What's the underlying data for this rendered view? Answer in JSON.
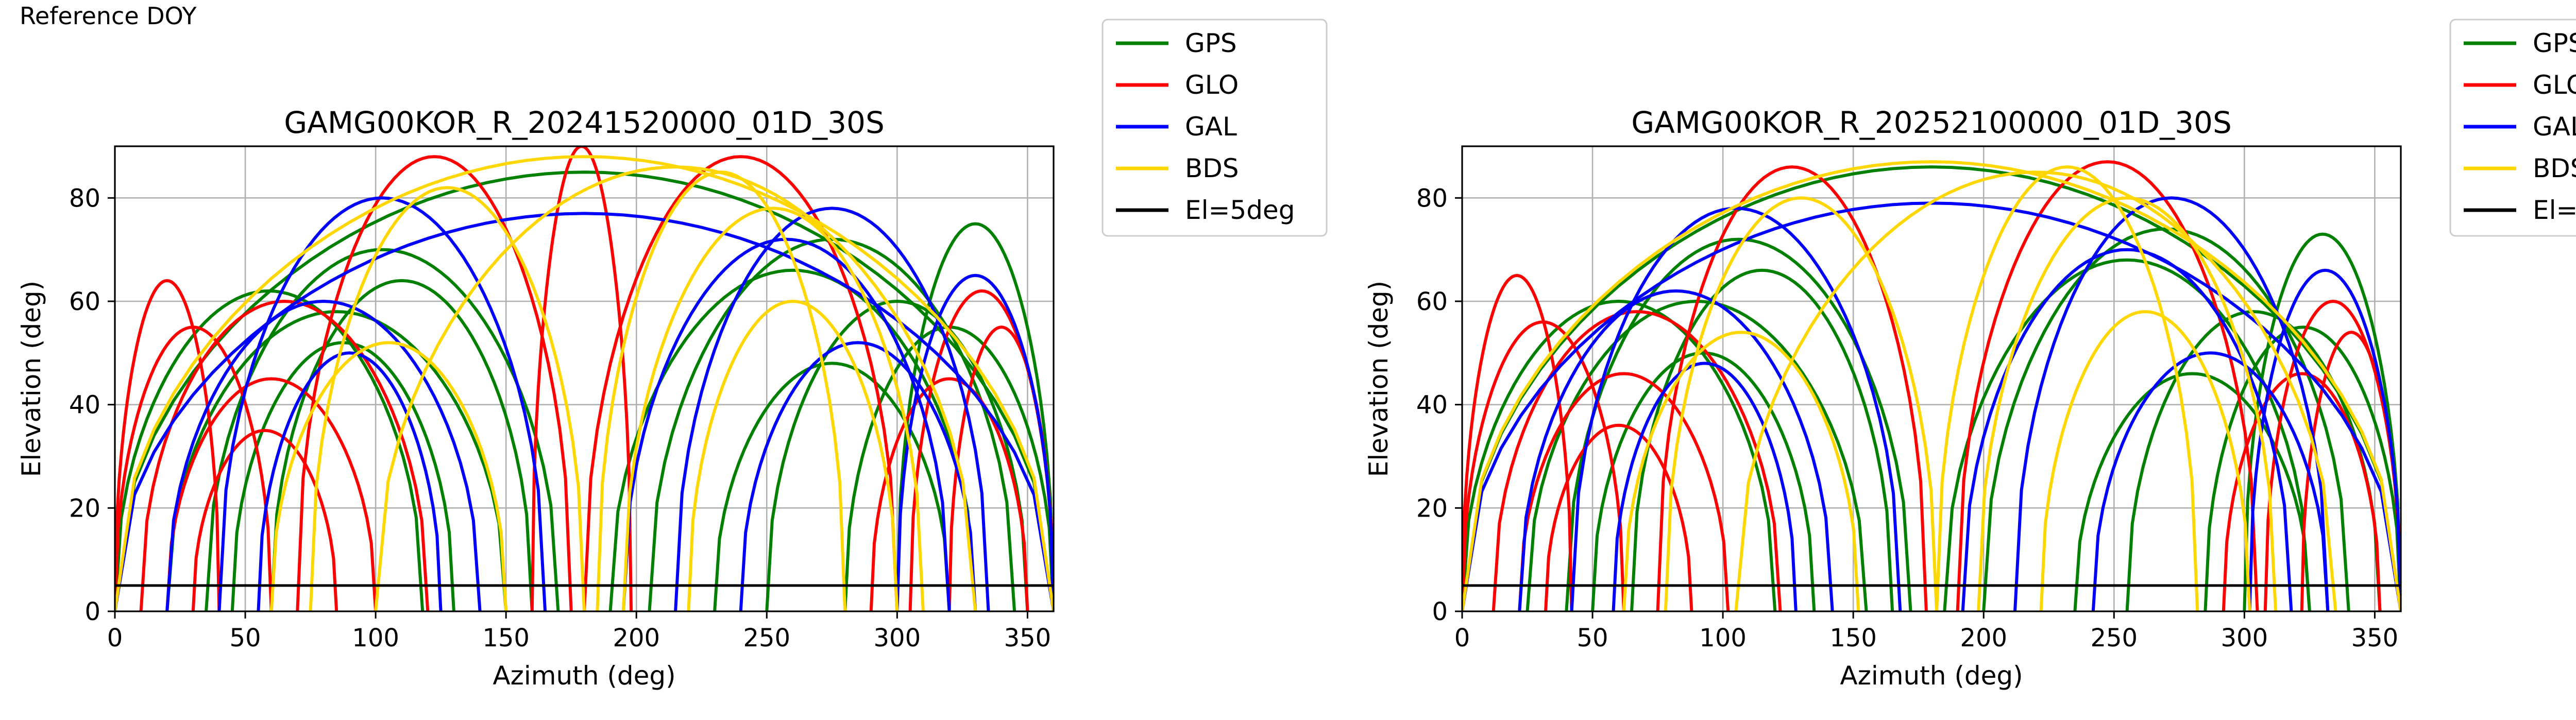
{
  "figure": {
    "suptitle": "Reference DOY"
  },
  "legend": {
    "entries": [
      {
        "label": "GPS",
        "color": "#008000"
      },
      {
        "label": "GLO",
        "color": "#ff0000"
      },
      {
        "label": "GAL",
        "color": "#0000ff"
      },
      {
        "label": "BDS",
        "color": "#ffd700"
      },
      {
        "label": "El=5deg",
        "color": "#000000"
      }
    ]
  },
  "chart_data": [
    {
      "type": "line",
      "title": "GAMG00KOR_R_20241520000_01D_30S",
      "xlabel": "Azimuth (deg)",
      "ylabel": "Elevation (deg)",
      "xlim": [
        0,
        360
      ],
      "ylim": [
        0,
        90
      ],
      "xticks": [
        0,
        50,
        100,
        150,
        200,
        250,
        300,
        350
      ],
      "yticks": [
        0,
        20,
        40,
        60,
        80
      ],
      "grid": true,
      "legend_position": "outside-right",
      "reference_line": {
        "name": "El=5deg",
        "y": 5
      },
      "series": [
        {
          "name": "GPS",
          "color": "#008000",
          "arcs": [
            [
              20,
              150,
              58
            ],
            [
              35,
              170,
              70
            ],
            [
              45,
              130,
              52
            ],
            [
              60,
              160,
              64
            ],
            [
              0,
              118,
              62
            ],
            [
              190,
              330,
              66
            ],
            [
              205,
              345,
              72
            ],
            [
              230,
              320,
              48
            ],
            [
              250,
              350,
              60
            ],
            [
              280,
              360,
              55
            ],
            [
              300,
              360,
              75
            ],
            [
              0,
              360,
              85
            ]
          ]
        },
        {
          "name": "GLO",
          "color": "#ff0000",
          "arcs": [
            [
              10,
              120,
              60
            ],
            [
              20,
              100,
              45
            ],
            [
              30,
              85,
              35
            ],
            [
              70,
              175,
              88
            ],
            [
              160,
              198,
              90
            ],
            [
              180,
              300,
              88
            ],
            [
              290,
              350,
              45
            ],
            [
              305,
              360,
              62
            ],
            [
              320,
              360,
              55
            ],
            [
              0,
              60,
              55
            ],
            [
              0,
              40,
              64
            ]
          ]
        },
        {
          "name": "GAL",
          "color": "#0000ff",
          "arcs": [
            [
              20,
              140,
              60
            ],
            [
              40,
              165,
              80
            ],
            [
              55,
              125,
              50
            ],
            [
              195,
              320,
              72
            ],
            [
              215,
              335,
              78
            ],
            [
              240,
              330,
              52
            ],
            [
              300,
              360,
              65
            ],
            [
              0,
              360,
              77
            ]
          ]
        },
        {
          "name": "BDS",
          "color": "#ffd700",
          "arcs": [
            [
              60,
              150,
              52
            ],
            [
              75,
              180,
              82
            ],
            [
              185,
              280,
              85
            ],
            [
              195,
              310,
              78
            ],
            [
              220,
              300,
              60
            ],
            [
              0,
              360,
              88
            ],
            [
              100,
              330,
              86
            ]
          ]
        }
      ]
    },
    {
      "type": "line",
      "title": "GAMG00KOR_R_20252100000_01D_30S",
      "xlabel": "Azimuth (deg)",
      "ylabel": "Elevation (deg)",
      "xlim": [
        0,
        360
      ],
      "ylim": [
        0,
        90
      ],
      "xticks": [
        0,
        50,
        100,
        150,
        200,
        250,
        300,
        350
      ],
      "yticks": [
        0,
        20,
        40,
        60,
        80
      ],
      "grid": true,
      "legend_position": "outside-right",
      "reference_line": {
        "name": "El=5deg",
        "y": 5
      },
      "series": [
        {
          "name": "GPS",
          "color": "#008000",
          "arcs": [
            [
              25,
              155,
              60
            ],
            [
              40,
              172,
              72
            ],
            [
              50,
              135,
              50
            ],
            [
              65,
              165,
              66
            ],
            [
              0,
              120,
              60
            ],
            [
              185,
              325,
              68
            ],
            [
              200,
              340,
              74
            ],
            [
              235,
              325,
              46
            ],
            [
              255,
              352,
              58
            ],
            [
              285,
              360,
              55
            ],
            [
              300,
              360,
              73
            ],
            [
              0,
              360,
              86
            ]
          ]
        },
        {
          "name": "GLO",
          "color": "#ff0000",
          "arcs": [
            [
              12,
              122,
              58
            ],
            [
              22,
              102,
              46
            ],
            [
              32,
              88,
              36
            ],
            [
              75,
              178,
              86
            ],
            [
              190,
              305,
              87
            ],
            [
              292,
              352,
              46
            ],
            [
              308,
              360,
              60
            ],
            [
              322,
              360,
              54
            ],
            [
              0,
              62,
              56
            ],
            [
              0,
              42,
              65
            ]
          ]
        },
        {
          "name": "GAL",
          "color": "#0000ff",
          "arcs": [
            [
              22,
              142,
              62
            ],
            [
              42,
              168,
              78
            ],
            [
              58,
              128,
              48
            ],
            [
              192,
              318,
              70
            ],
            [
              212,
              332,
              80
            ],
            [
              242,
              332,
              50
            ],
            [
              302,
              360,
              66
            ],
            [
              0,
              360,
              79
            ]
          ]
        },
        {
          "name": "BDS",
          "color": "#ffd700",
          "arcs": [
            [
              62,
              152,
              54
            ],
            [
              78,
              182,
              80
            ],
            [
              182,
              282,
              86
            ],
            [
              198,
              312,
              80
            ],
            [
              222,
              302,
              58
            ],
            [
              0,
              360,
              87
            ],
            [
              105,
              335,
              85
            ]
          ]
        }
      ]
    }
  ]
}
